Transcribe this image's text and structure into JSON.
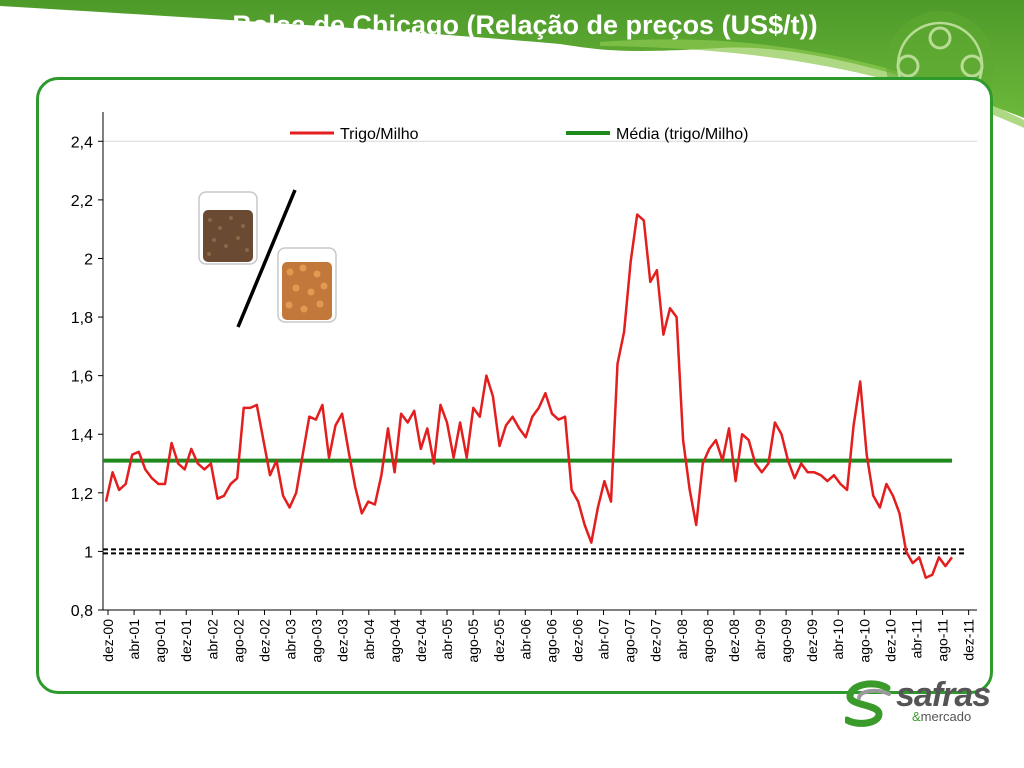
{
  "slide": {
    "title": "Bolsa de Chicago (Relação de preços (US$/t))",
    "accent_color": "#5faa32",
    "frame_color": "#2e9a2e"
  },
  "logo": {
    "word": "safras",
    "sub_amp": "&",
    "sub_rest": "mercado",
    "icon": "safras-s-icon"
  },
  "decor": {
    "grain_icons": [
      "wheat-jar-icon",
      "corn-jar-icon"
    ]
  },
  "chart_data": {
    "type": "line",
    "title": "",
    "xlabel": "",
    "ylabel": "",
    "ylim": [
      0.8,
      2.5
    ],
    "yticks": [
      0.8,
      1,
      1.2,
      1.4,
      1.6,
      1.8,
      2,
      2.2,
      2.4
    ],
    "ytick_labels": [
      "0,8",
      "1",
      "1,2",
      "1,4",
      "1,6",
      "1,8",
      "2",
      "2,2",
      "2,4"
    ],
    "xtick_labels": [
      "dez-00",
      "abr-01",
      "ago-01",
      "dez-01",
      "abr-02",
      "ago-02",
      "dez-02",
      "abr-03",
      "ago-03",
      "dez-03",
      "abr-04",
      "ago-04",
      "dez-04",
      "abr-05",
      "ago-05",
      "dez-05",
      "abr-06",
      "ago-06",
      "dez-06",
      "abr-07",
      "ago-07",
      "dez-07",
      "abr-08",
      "ago-08",
      "dez-08",
      "abr-09",
      "ago-09",
      "dez-09",
      "abr-10",
      "ago-10",
      "dez-10",
      "abr-11",
      "ago-11",
      "dez-11"
    ],
    "legend_position": "top",
    "series": [
      {
        "name": "Trigo/Milho",
        "color": "#e31e1e",
        "values": [
          1.17,
          1.27,
          1.21,
          1.23,
          1.33,
          1.34,
          1.28,
          1.25,
          1.23,
          1.23,
          1.37,
          1.3,
          1.28,
          1.35,
          1.3,
          1.28,
          1.3,
          1.18,
          1.19,
          1.23,
          1.25,
          1.49,
          1.49,
          1.5,
          1.38,
          1.26,
          1.31,
          1.19,
          1.15,
          1.2,
          1.33,
          1.46,
          1.45,
          1.5,
          1.32,
          1.43,
          1.47,
          1.34,
          1.22,
          1.13,
          1.17,
          1.16,
          1.26,
          1.42,
          1.27,
          1.47,
          1.44,
          1.48,
          1.35,
          1.42,
          1.3,
          1.5,
          1.44,
          1.32,
          1.44,
          1.32,
          1.49,
          1.46,
          1.6,
          1.53,
          1.36,
          1.43,
          1.46,
          1.42,
          1.39,
          1.46,
          1.49,
          1.54,
          1.47,
          1.45,
          1.46,
          1.21,
          1.17,
          1.09,
          1.03,
          1.15,
          1.24,
          1.17,
          1.64,
          1.75,
          1.99,
          2.15,
          2.13,
          1.92,
          1.96,
          1.74,
          1.83,
          1.8,
          1.38,
          1.21,
          1.09,
          1.3,
          1.35,
          1.38,
          1.31,
          1.42,
          1.24,
          1.4,
          1.38,
          1.3,
          1.27,
          1.3,
          1.44,
          1.4,
          1.31,
          1.25,
          1.3,
          1.27,
          1.27,
          1.26,
          1.24,
          1.26,
          1.23,
          1.21,
          1.43,
          1.58,
          1.33,
          1.19,
          1.15,
          1.23,
          1.19,
          1.13,
          1.0,
          0.96,
          0.98,
          0.91,
          0.92,
          0.98,
          0.95,
          0.98
        ]
      },
      {
        "name": "Média (trigo/Milho)",
        "color": "#1e8a1e",
        "values": [
          1.31
        ]
      }
    ],
    "reference_line": {
      "value": 1.0,
      "style": "dashed-double",
      "color": "#000000"
    }
  }
}
